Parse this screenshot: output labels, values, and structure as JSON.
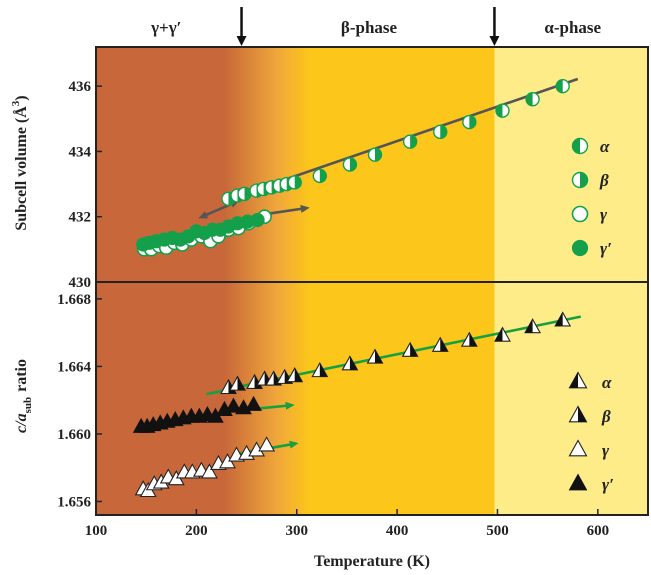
{
  "chart_data": [
    {
      "type": "scatter",
      "panel": "top",
      "xlabel": "",
      "ylabel": "Subcell volume (Å³)",
      "ylabel_parts": [
        "Subcell volume (Å",
        "3",
        ")"
      ],
      "xlim": [
        100,
        650
      ],
      "ylim": [
        430,
        437.2
      ],
      "yticks": [
        430,
        432,
        434,
        436
      ],
      "ytick_labels": [
        "430",
        "432",
        "434",
        "436"
      ],
      "legend": [
        "α",
        "β",
        "γ",
        "γ′"
      ],
      "legend_placement": "right",
      "phase_labels": [
        {
          "text": "γ+γ′",
          "x": 170
        },
        {
          "text": "β-phase",
          "x": 372
        },
        {
          "text": "α-phase",
          "x": 575
        }
      ],
      "phase_boundaries": [
        245,
        497
      ],
      "series": [
        {
          "name": "α",
          "x": [
            505,
            535,
            565
          ],
          "y": [
            435.25,
            435.6,
            436.0
          ]
        },
        {
          "name": "β",
          "x": [
            232,
            241,
            248,
            260,
            267,
            275,
            283,
            290,
            298,
            323,
            353,
            378,
            413,
            443,
            472
          ],
          "y": [
            432.55,
            432.65,
            432.7,
            432.8,
            432.85,
            432.9,
            432.95,
            433.0,
            433.05,
            433.25,
            433.6,
            433.9,
            434.3,
            434.6,
            434.9
          ]
        },
        {
          "name": "γ",
          "x": [
            148,
            155,
            163,
            170,
            178,
            186,
            195,
            205,
            214,
            222,
            232,
            242,
            252,
            268
          ],
          "y": [
            431.0,
            431.0,
            431.1,
            431.05,
            431.2,
            431.15,
            431.3,
            431.4,
            431.25,
            431.4,
            431.6,
            431.65,
            431.8,
            432.0
          ]
        },
        {
          "name": "γ′",
          "x": [
            147,
            153,
            160,
            168,
            176,
            184,
            192,
            200,
            208,
            216,
            224,
            232,
            241,
            251,
            261
          ],
          "y": [
            431.15,
            431.2,
            431.25,
            431.3,
            431.35,
            431.3,
            431.4,
            431.55,
            431.5,
            431.6,
            431.6,
            431.7,
            431.8,
            431.85,
            431.9
          ]
        }
      ]
    },
    {
      "type": "scatter",
      "panel": "bottom",
      "xlabel": "Temperature (K)",
      "ylabel": "c/a_sub ratio",
      "ylabel_parts": [
        "c/a",
        "sub",
        "ratio"
      ],
      "xlim": [
        100,
        650
      ],
      "ylim": [
        1.6552,
        1.669
      ],
      "xticks": [
        100,
        200,
        300,
        400,
        500,
        600
      ],
      "xtick_labels": [
        "100",
        "200",
        "300",
        "400",
        "500",
        "600"
      ],
      "yticks": [
        1.656,
        1.66,
        1.664,
        1.668
      ],
      "ytick_labels": [
        "1.656",
        "1.660",
        "1.664",
        "1.668"
      ],
      "legend": [
        "α",
        "β",
        "γ",
        "γ′"
      ],
      "legend_placement": "right",
      "series": [
        {
          "name": "α",
          "x": [
            505,
            535,
            565
          ],
          "y": [
            1.6658,
            1.6663,
            1.6667
          ]
        },
        {
          "name": "β",
          "x": [
            232,
            241,
            258,
            268,
            277,
            288,
            298,
            323,
            353,
            378,
            413,
            443,
            472
          ],
          "y": [
            1.6627,
            1.6629,
            1.663,
            1.6632,
            1.6632,
            1.6633,
            1.6634,
            1.6637,
            1.6641,
            1.6645,
            1.6649,
            1.6652,
            1.6655
          ]
        },
        {
          "name": "γ",
          "x": [
            147,
            152,
            158,
            165,
            172,
            180,
            188,
            196,
            205,
            213,
            222,
            231,
            240,
            250,
            260,
            270
          ],
          "y": [
            1.6567,
            1.6566,
            1.657,
            1.6571,
            1.6574,
            1.6573,
            1.6577,
            1.6577,
            1.6578,
            1.6577,
            1.6582,
            1.6583,
            1.6587,
            1.6588,
            1.659,
            1.6593
          ]
        },
        {
          "name": "γ′",
          "x": [
            145,
            151,
            157,
            164,
            171,
            179,
            187,
            195,
            203,
            211,
            219,
            228,
            237,
            247,
            257
          ],
          "y": [
            1.6604,
            1.6604,
            1.6605,
            1.6606,
            1.6607,
            1.6608,
            1.6609,
            1.661,
            1.661,
            1.6611,
            1.661,
            1.6614,
            1.6616,
            1.6615,
            1.6617
          ]
        }
      ]
    }
  ],
  "colors": {
    "region_gamma": "#c8683a",
    "region_beta": "#fcc61a",
    "region_alpha": "#fdec88",
    "marker_green": "#14a04a",
    "fit_line_top": "#555555",
    "fit_line_bottom": "#16a040",
    "arrow_green": "#16a040",
    "arrow_gray": "#555555",
    "frame": "#222222"
  }
}
